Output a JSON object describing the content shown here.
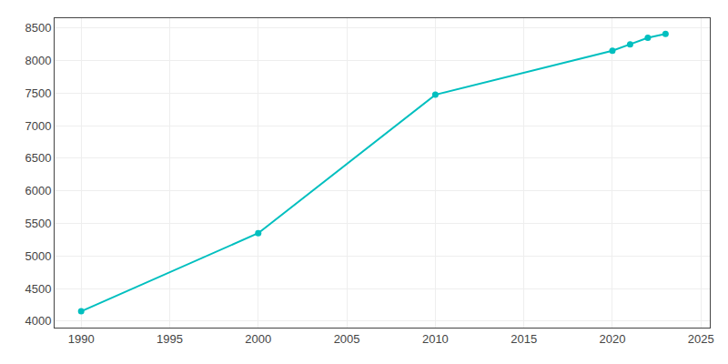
{
  "chart_data": {
    "type": "line",
    "x": [
      1990,
      2000,
      2010,
      2020,
      2021,
      2022,
      2023
    ],
    "values": [
      4150,
      5350,
      7475,
      8150,
      8250,
      8350,
      8410
    ],
    "color": "#00BFBF",
    "marker": "o",
    "xlim": [
      1988.5,
      2025.5
    ],
    "ylim": [
      3900,
      8650
    ],
    "xticks": [
      1990,
      1995,
      2000,
      2005,
      2010,
      2015,
      2020,
      2025
    ],
    "yticks": [
      4000,
      4500,
      5000,
      5500,
      6000,
      6500,
      7000,
      7500,
      8000,
      8500
    ],
    "grid": true
  }
}
